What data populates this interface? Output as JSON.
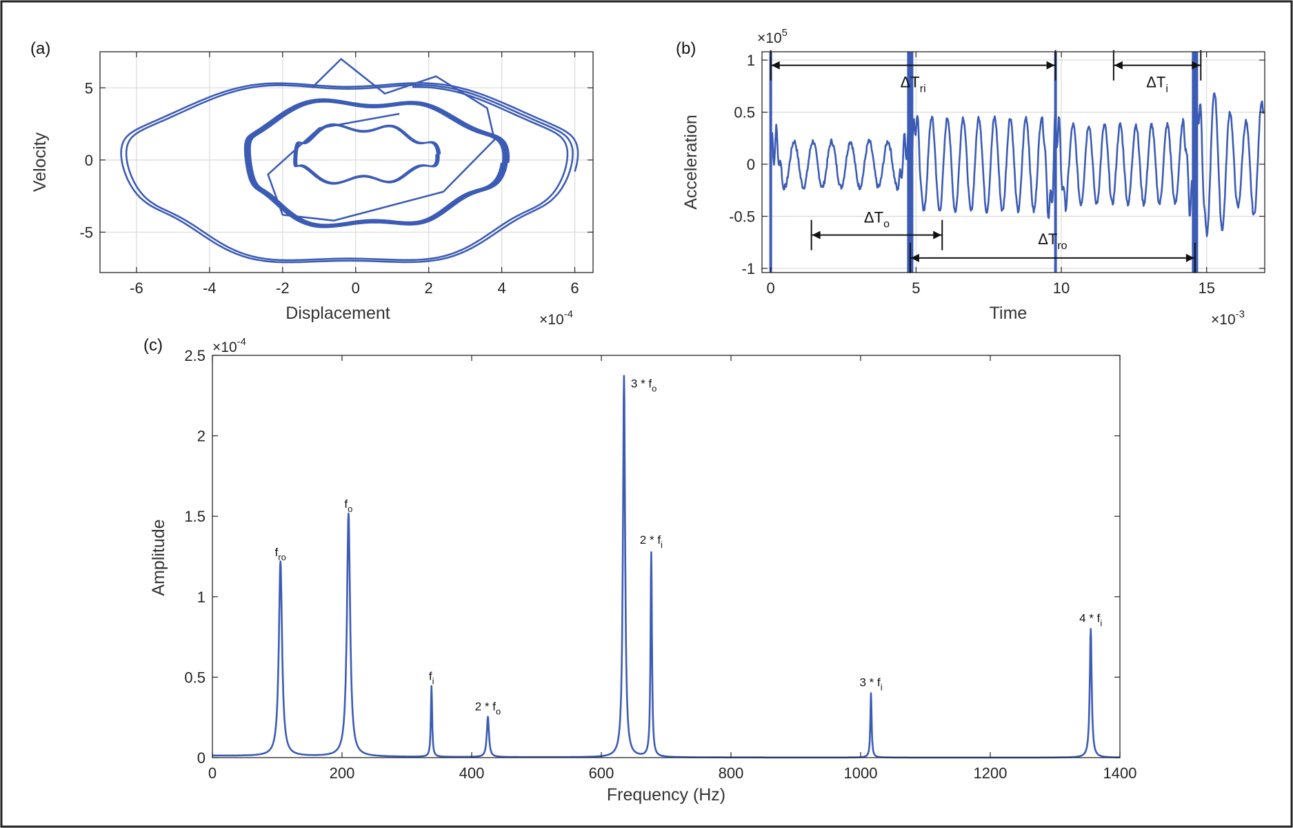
{
  "chart_data": [
    {
      "id": "a",
      "panel": "(a)",
      "type": "line",
      "xlabel": "Displacement",
      "ylabel": "Velocity",
      "x_exponent": "×10",
      "x_exponent_power": "-4",
      "xlim": [
        -7,
        6.5
      ],
      "ylim": [
        -7.8,
        7.5
      ],
      "xticks": [
        -6,
        -4,
        -2,
        0,
        2,
        4,
        6
      ],
      "xtick_labels": [
        "-6",
        "-4",
        "-2",
        "0",
        "2",
        "4",
        "6"
      ],
      "yticks": [
        -5,
        0,
        5
      ],
      "ytick_labels": [
        "-5",
        "0",
        "5"
      ],
      "grid": true,
      "color": "#3b5bb5",
      "orbits": [
        {
          "cx": -0.2,
          "cy": -0.8,
          "rx": 6.2,
          "ry": 6.4,
          "laps": 2.2
        },
        {
          "cx": 0.4,
          "cy": -0.2,
          "rx": 3.6,
          "ry": 4.4,
          "laps": 5
        },
        {
          "cx": 0.2,
          "cy": 0.4,
          "rx": 2.0,
          "ry": 1.9,
          "laps": 3
        }
      ],
      "spikes": [
        [
          -1.2,
          5.0
        ],
        [
          -0.4,
          7.0
        ],
        [
          0.8,
          4.6
        ],
        [
          2.2,
          5.8
        ],
        [
          3.6,
          3.6
        ],
        [
          3.8,
          1.4
        ],
        [
          2.4,
          -2.2
        ],
        [
          -0.6,
          -4.2
        ],
        [
          -2.0,
          -3.8
        ],
        [
          -2.4,
          -1.0
        ],
        [
          -1.0,
          2.2
        ],
        [
          1.2,
          3.2
        ]
      ]
    },
    {
      "id": "b",
      "panel": "(b)",
      "type": "line",
      "xlabel": "Time",
      "ylabel": "Acceleration",
      "x_exponent": "×10",
      "x_exponent_power": "-3",
      "y_exponent": "×10",
      "y_exponent_power": "5",
      "xlim": [
        -0.3,
        17.0
      ],
      "ylim": [
        -1.04,
        1.08
      ],
      "xticks": [
        0,
        5,
        10,
        15
      ],
      "xtick_labels": [
        "0",
        "5",
        "10",
        "15"
      ],
      "yticks": [
        -1,
        -0.5,
        0,
        0.5,
        1
      ],
      "ytick_labels": [
        "-1",
        "-0.5",
        "0",
        "0.5",
        "1"
      ],
      "grid": true,
      "color": "#3b5bb5",
      "impact_lines": [
        0.0,
        4.8,
        9.8,
        14.6
      ],
      "annotations": [
        {
          "id": "dTri",
          "label": "ΔT",
          "sub": "ri",
          "from": 0.0,
          "to": 9.8,
          "y": 0.95
        },
        {
          "id": "dTi",
          "label": "ΔT",
          "sub": "i",
          "from": 11.8,
          "to": 14.8,
          "y": 0.95
        },
        {
          "id": "dTo",
          "label": "ΔT",
          "sub": "o",
          "from": 1.4,
          "to": 5.9,
          "y": -0.68
        },
        {
          "id": "dTro",
          "label": "ΔT",
          "sub": "ro",
          "from": 4.8,
          "to": 14.6,
          "y": -0.9
        }
      ]
    },
    {
      "id": "c",
      "panel": "(c)",
      "type": "line",
      "xlabel": "Frequency (Hz)",
      "ylabel": "Amplitude",
      "y_exponent": "×10",
      "y_exponent_power": "-4",
      "xlim": [
        0,
        1400
      ],
      "ylim": [
        0,
        2.5
      ],
      "xticks": [
        0,
        200,
        400,
        600,
        800,
        1000,
        1200,
        1400
      ],
      "xtick_labels": [
        "0",
        "200",
        "400",
        "600",
        "800",
        "1000",
        "1200",
        "1400"
      ],
      "yticks": [
        0,
        0.5,
        1,
        1.5,
        2,
        2.5
      ],
      "ytick_labels": [
        "0",
        "0.5",
        "1",
        "1.5",
        "2",
        "2.5"
      ],
      "grid": false,
      "color": "#3b5bb5",
      "baseline": 0.012,
      "peaks": [
        {
          "x": 105,
          "y": 1.21,
          "width": 3.0,
          "label": "f",
          "sub": "ro"
        },
        {
          "x": 210,
          "y": 1.51,
          "width": 3.0,
          "label": "f",
          "sub": "o"
        },
        {
          "x": 338,
          "y": 0.44,
          "width": 1.2,
          "label": "f",
          "sub": "i"
        },
        {
          "x": 425,
          "y": 0.25,
          "width": 2.0,
          "label": "2 * f",
          "sub": "o"
        },
        {
          "x": 635,
          "y": 2.37,
          "width": 2.0,
          "label": "3 * f",
          "sub": "o"
        },
        {
          "x": 677,
          "y": 1.27,
          "width": 1.3,
          "label": "2 * f",
          "sub": "i"
        },
        {
          "x": 1016,
          "y": 0.4,
          "width": 1.2,
          "label": "3 * f",
          "sub": "i"
        },
        {
          "x": 1355,
          "y": 0.8,
          "width": 1.8,
          "label": "4 * f",
          "sub": "i"
        }
      ]
    }
  ]
}
